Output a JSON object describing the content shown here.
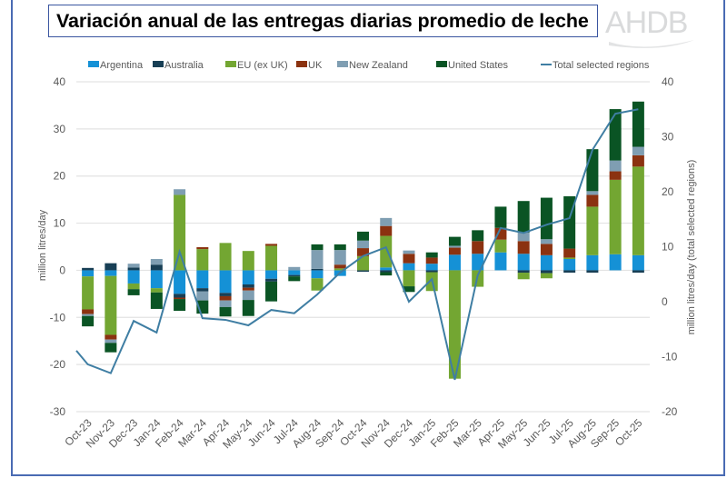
{
  "header": {
    "title": "Variación anual de las entregas diarias promedio de leche",
    "logo_text": "AHDB"
  },
  "chart_data": {
    "type": "bar",
    "stacked": true,
    "title": "Variación anual de las entregas diarias promedio de leche",
    "ylabel": "million litres/day",
    "y2label": "million litres/day (total selected regions)",
    "ylim": [
      -30,
      40
    ],
    "y2lim": [
      -20,
      40
    ],
    "yticks": [
      -30,
      -20,
      -10,
      0,
      10,
      20,
      30,
      40
    ],
    "y2ticks": [
      -20,
      -10,
      0,
      10,
      20,
      30,
      40
    ],
    "grid": true,
    "legend_position": "top",
    "categories": [
      "Oct-23",
      "Nov-23",
      "Dec-23",
      "Jan-24",
      "Feb-24",
      "Mar-24",
      "Apr-24",
      "May-24",
      "Jun-24",
      "Jul-24",
      "Aug-24",
      "Sep-24",
      "Oct-24",
      "Nov-24",
      "Dec-24",
      "Jan-25",
      "Feb-25",
      "Mar-25",
      "Apr-25",
      "May-25",
      "Jun-25",
      "Jul-25",
      "Aug-25",
      "Sep-25",
      "Oct-25"
    ],
    "series": [
      {
        "name": "Argentina",
        "color": "#1591d6",
        "values": [
          -1.3,
          -1.2,
          -2.8,
          -3.8,
          -5.0,
          -3.8,
          -4.8,
          -3.0,
          -1.8,
          -1.0,
          -1.7,
          -1.2,
          0.0,
          0.6,
          1.5,
          1.4,
          3.3,
          3.5,
          3.8,
          3.5,
          3.2,
          2.4,
          3.2,
          3.4,
          3.2
        ]
      },
      {
        "name": "Australia",
        "color": "#183f55",
        "values": [
          0.5,
          1.5,
          0.6,
          1.2,
          -0.8,
          -0.7,
          -0.7,
          -0.7,
          -0.6,
          -0.3,
          0.3,
          0.0,
          -0.3,
          -0.4,
          0.0,
          -0.4,
          0.0,
          0.0,
          0.0,
          -0.5,
          -0.6,
          -0.5,
          -0.5,
          0.0,
          -0.5
        ]
      },
      {
        "name": "EU (ex UK)",
        "color": "#73a632",
        "values": [
          -7.0,
          -12.5,
          -1.2,
          -0.9,
          16.0,
          4.5,
          5.8,
          4.1,
          5.2,
          0.0,
          -2.6,
          0.4,
          3.0,
          6.7,
          -3.4,
          -4.0,
          -23.0,
          -3.5,
          2.7,
          -1.4,
          -1.1,
          0.3,
          10.3,
          15.8,
          18.8
        ]
      },
      {
        "name": "UK",
        "color": "#8b3210",
        "values": [
          -1.0,
          -1.0,
          0.0,
          0.0,
          -0.3,
          0.4,
          -0.9,
          -0.6,
          0.4,
          0.0,
          0.0,
          0.8,
          1.7,
          2.1,
          2.0,
          1.3,
          1.5,
          2.7,
          2.5,
          2.7,
          2.4,
          1.9,
          2.5,
          1.8,
          2.4
        ]
      },
      {
        "name": "New Zealand",
        "color": "#7f9eb2",
        "values": [
          -0.4,
          -0.7,
          0.8,
          1.2,
          1.2,
          -1.9,
          -1.4,
          -2.0,
          0.0,
          0.7,
          4.0,
          3.1,
          1.6,
          1.7,
          0.7,
          0.0,
          0.4,
          0.0,
          0.0,
          1.8,
          1.0,
          0.0,
          0.8,
          2.3,
          1.8
        ]
      },
      {
        "name": "United States",
        "color": "#0a5424",
        "values": [
          -2.2,
          -2.0,
          -1.3,
          -3.5,
          -2.5,
          -2.8,
          -2.0,
          -3.4,
          -4.2,
          -1.0,
          1.2,
          1.2,
          1.9,
          -0.7,
          -1.2,
          1.1,
          1.9,
          2.3,
          4.5,
          6.7,
          8.8,
          11.1,
          8.9,
          10.9,
          9.6
        ]
      }
    ],
    "line": {
      "name": "Total selected regions",
      "color": "#3f7ea3",
      "axis": "right",
      "start_value": -8.9,
      "values": [
        -11.4,
        -13.0,
        -3.5,
        -5.6,
        9.1,
        -3.0,
        -3.3,
        -4.3,
        -1.5,
        -2.1,
        1.3,
        5.3,
        8.3,
        9.9,
        0.0,
        4.1,
        -14.2,
        4.8,
        13.4,
        12.5,
        14.0,
        15.2,
        27.6,
        34.2,
        35.0
      ]
    }
  }
}
